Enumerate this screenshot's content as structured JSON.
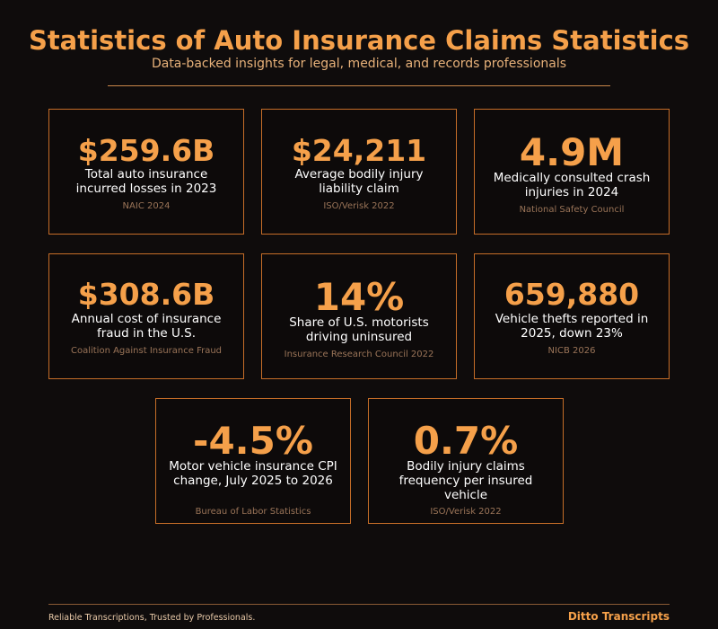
{
  "header": {
    "title": "Statistics of Auto Insurance Claims Statistics",
    "subtitle": "Data-backed insights for legal, medical, and records professionals"
  },
  "cards": [
    {
      "value": "$259.6B",
      "description": "Total auto insurance incurred losses in 2023",
      "source": "NAIC 2024"
    },
    {
      "value": "$24,211",
      "description": "Average bodily injury liability claim",
      "source": "ISO/Verisk 2022"
    },
    {
      "value": "4.9M",
      "description": "Medically consulted crash injuries in 2024",
      "source": "National Safety Council"
    },
    {
      "value": "$308.6B",
      "description": "Annual cost of insurance fraud in the U.S.",
      "source": "Coalition Against Insurance Fraud"
    },
    {
      "value": "14%",
      "description": "Share of U.S. motorists driving uninsured",
      "source": "Insurance Research Council 2022"
    },
    {
      "value": "659,880",
      "description": "Vehicle thefts reported in 2025, down 23%",
      "source": "NICB 2026"
    },
    {
      "value": "-4.5%",
      "description": "Motor vehicle insurance CPI change, July 2025 to 2026",
      "source": "Bureau of Labor Statistics"
    },
    {
      "value": "0.7%",
      "description": "Bodily injury claims frequency per insured vehicle",
      "source": "ISO/Verisk 2022"
    }
  ],
  "footer": {
    "tagline": "Reliable Transcriptions, Trusted by Professionals.",
    "brand": "Ditto Transcripts"
  },
  "colors": {
    "background": "#0f0c0c",
    "accent": "#f5a04a",
    "card_border": "#c56d28",
    "source_text": "#9a7458"
  }
}
